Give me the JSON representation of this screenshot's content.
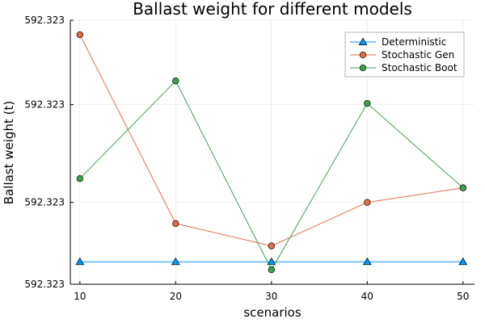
{
  "chart_data": {
    "type": "line",
    "title": "Ballast weight for different models",
    "xlabel": "scenarios",
    "ylabel": "Ballast weight (t)",
    "x": [
      10,
      20,
      30,
      40,
      50
    ],
    "x_ticks": [
      "10",
      "20",
      "30",
      "40",
      "50"
    ],
    "xlim": [
      9,
      51.2
    ],
    "ylim": [
      0,
      1
    ],
    "y_tick_positions": [
      0,
      0.31,
      0.68,
      1
    ],
    "y_tick_labels": [
      "592.323",
      "592.323",
      "592.323",
      "592.323"
    ],
    "grid": true,
    "legend_position": "top-right",
    "series": [
      {
        "name": "Deterministic",
        "color": "#009AFA",
        "marker": "triangle",
        "values": [
          0.085,
          0.085,
          0.085,
          0.085,
          0.085
        ]
      },
      {
        "name": "Stochastic Gen",
        "color": "#E26F46",
        "marker": "circle",
        "values": [
          0.945,
          0.23,
          0.145,
          0.31,
          0.365
        ]
      },
      {
        "name": "Stochastic Boot",
        "color": "#3DA44D",
        "marker": "circle",
        "values": [
          0.4,
          0.77,
          0.055,
          0.685,
          0.365
        ]
      }
    ]
  }
}
